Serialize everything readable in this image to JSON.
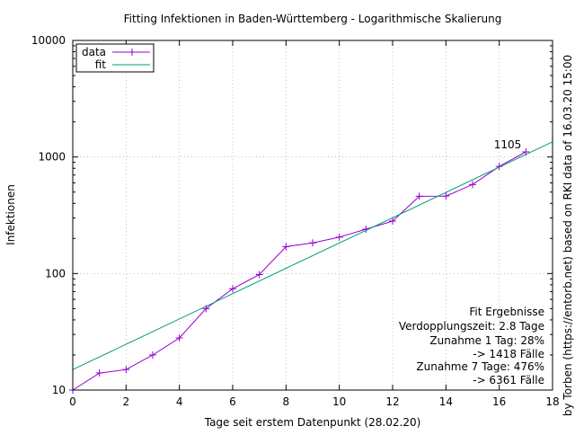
{
  "chart_data": {
    "type": "line",
    "title": "Fitting Infektionen in Baden-Württemberg - Logarithmische Skalierung",
    "xlabel": "Tage seit erstem Datenpunkt (28.02.20)",
    "ylabel": "Infektionen",
    "xlim": [
      0,
      18
    ],
    "ylim": [
      10,
      10000
    ],
    "yscale": "log",
    "grid": true,
    "legend_position": "top-left",
    "x_ticks": [
      0,
      2,
      4,
      6,
      8,
      10,
      12,
      14,
      16,
      18
    ],
    "y_ticks": [
      10,
      100,
      1000,
      10000
    ],
    "series": [
      {
        "name": "data",
        "color": "#9400d3",
        "marker": "plus",
        "x": [
          0,
          1,
          2,
          3,
          4,
          5,
          6,
          7,
          8,
          9,
          10,
          11,
          12,
          13,
          14,
          15,
          16,
          17
        ],
        "y": [
          10,
          14,
          15,
          20,
          28,
          50,
          74,
          98,
          170,
          183,
          205,
          240,
          282,
          460,
          462,
          580,
          830,
          1105
        ]
      },
      {
        "name": "fit",
        "color": "#009e73",
        "x": [
          0,
          18
        ],
        "y": [
          15,
          1350
        ]
      }
    ],
    "annotations": [
      {
        "text": "1105",
        "x": 17,
        "y": 1105
      }
    ],
    "fit_results": [
      "Fit Ergebnisse",
      "Verdopplungszeit: 2.8 Tage",
      "Zunahme 1 Tag: 28%",
      "-> 1418 Fälle",
      "Zunahme 7 Tage: 476%",
      "-> 6361 Fälle"
    ],
    "side_note": "by Torben (https://entorb.net) based on RKI data of 16.03.20 15:00"
  }
}
